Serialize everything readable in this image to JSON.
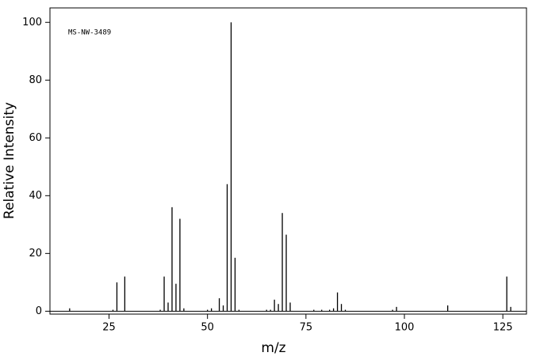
{
  "chart_data": {
    "type": "stem",
    "annotation": "MS-NW-3489",
    "xlabel": "m/z",
    "ylabel": "Relative Intensity",
    "x": [
      15,
      26,
      27,
      29,
      38,
      39,
      40,
      41,
      42,
      43,
      44,
      50,
      51,
      53,
      54,
      55,
      56,
      57,
      58,
      65,
      66,
      67,
      68,
      69,
      70,
      71,
      77,
      79,
      81,
      82,
      83,
      84,
      85,
      97,
      98,
      111,
      126,
      127
    ],
    "values": [
      1,
      0.5,
      10,
      12,
      0.5,
      12,
      3,
      36,
      9.5,
      32,
      1,
      0.5,
      1,
      4.5,
      2,
      44,
      100,
      18.5,
      0.5,
      0.5,
      0.5,
      4,
      2.5,
      34,
      26.5,
      3,
      0.5,
      0.5,
      0.5,
      1,
      6.5,
      2.5,
      0.5,
      0.5,
      1.5,
      2,
      12,
      1.5
    ],
    "color": "#000000",
    "xlim": [
      10,
      131
    ],
    "xticks": [
      25,
      50,
      75,
      100,
      125
    ],
    "ylim": [
      -1,
      105
    ],
    "yticks": [
      0,
      20,
      40,
      60,
      80,
      100
    ]
  }
}
